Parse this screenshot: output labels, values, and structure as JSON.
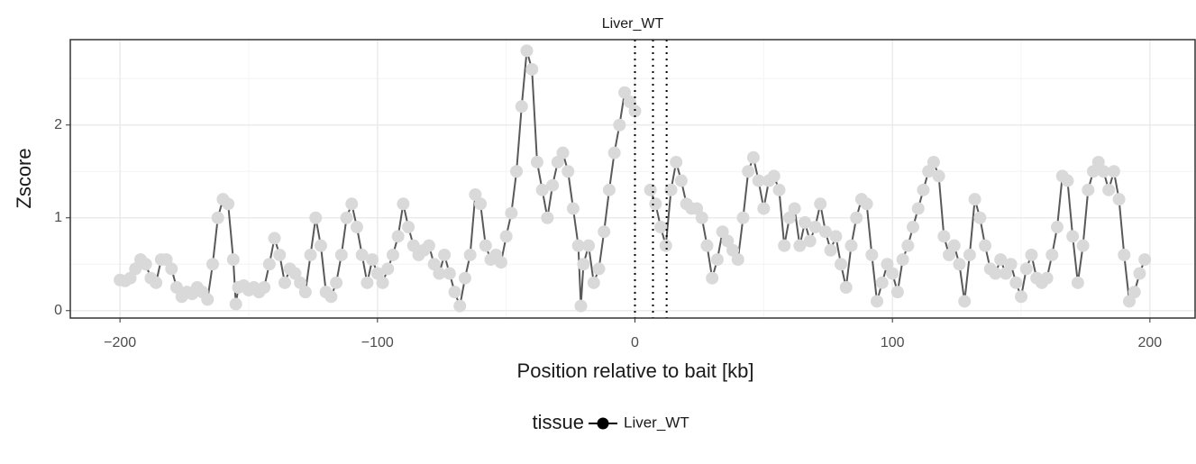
{
  "chart_data": {
    "type": "line",
    "panel_title": "Liver_WT",
    "x_label": "Position relative to bait [kb]",
    "y_label": "Zscore",
    "x": [
      -200,
      -198,
      -196,
      -194,
      -192,
      -190,
      -188,
      -186,
      -184,
      -182,
      -180,
      -178,
      -176,
      -174,
      -172,
      -170,
      -168,
      -166,
      -164,
      -162,
      -160,
      -158,
      -156,
      -155,
      -154,
      -152,
      -150,
      -148,
      -146,
      -144,
      -142,
      -140,
      -138,
      -136,
      -134,
      -132,
      -130,
      -128,
      -126,
      -124,
      -122,
      -120,
      -118,
      -116,
      -114,
      -112,
      -110,
      -108,
      -106,
      -104,
      -102,
      -100,
      -98,
      -96,
      -94,
      -92,
      -90,
      -88,
      -86,
      -84,
      -82,
      -80,
      -78,
      -76,
      -74,
      -72,
      -70,
      -68,
      -66,
      -64,
      -62,
      -60,
      -58,
      -56,
      -54,
      -52,
      -50,
      -48,
      -46,
      -44,
      -42,
      -40,
      -38,
      -36,
      -34,
      -32,
      -30,
      -28,
      -26,
      -24,
      -22,
      -21,
      -20,
      -18,
      -16,
      -14,
      -12,
      -10,
      -8,
      -6,
      -4,
      -2,
      0,
      3,
      6,
      8,
      10,
      12,
      14,
      16,
      18,
      20,
      22,
      24,
      26,
      28,
      30,
      32,
      34,
      36,
      38,
      40,
      42,
      44,
      46,
      48,
      50,
      52,
      54,
      56,
      58,
      60,
      62,
      64,
      66,
      68,
      70,
      72,
      74,
      76,
      78,
      80,
      82,
      84,
      86,
      88,
      90,
      92,
      94,
      96,
      98,
      100,
      102,
      104,
      106,
      108,
      110,
      112,
      114,
      116,
      118,
      120,
      122,
      124,
      126,
      128,
      130,
      132,
      134,
      136,
      138,
      140,
      142,
      144,
      146,
      148,
      150,
      152,
      154,
      156,
      158,
      160,
      162,
      164,
      166,
      168,
      170,
      172,
      174,
      176,
      178,
      180,
      182,
      184,
      186,
      188,
      190,
      192,
      194,
      196,
      198
    ],
    "series": [
      {
        "name": "Liver_WT",
        "color": "#d9d9d9",
        "line_color": "#595959",
        "values": [
          0.33,
          0.32,
          0.35,
          0.45,
          0.55,
          0.5,
          0.35,
          0.3,
          0.55,
          0.55,
          0.45,
          0.25,
          0.15,
          0.2,
          0.18,
          0.25,
          0.2,
          0.12,
          0.5,
          1.0,
          1.2,
          1.15,
          0.55,
          0.07,
          0.25,
          0.27,
          0.22,
          0.25,
          0.2,
          0.25,
          0.5,
          0.78,
          0.6,
          0.3,
          0.45,
          0.4,
          0.3,
          0.2,
          0.6,
          1.0,
          0.7,
          0.2,
          0.15,
          0.3,
          0.6,
          1.0,
          1.15,
          0.9,
          0.6,
          0.3,
          0.55,
          0.4,
          0.3,
          0.45,
          0.6,
          0.8,
          1.15,
          0.9,
          0.7,
          0.6,
          0.65,
          0.7,
          0.5,
          0.4,
          0.6,
          0.4,
          0.2,
          0.05,
          0.35,
          0.6,
          1.25,
          1.15,
          0.7,
          0.55,
          0.6,
          0.52,
          0.8,
          1.05,
          1.5,
          2.2,
          2.8,
          2.6,
          1.6,
          1.3,
          1.0,
          1.35,
          1.6,
          1.7,
          1.5,
          1.1,
          0.7,
          0.05,
          0.5,
          0.7,
          0.3,
          0.45,
          0.85,
          1.3,
          1.7,
          2.0,
          2.35,
          2.25,
          2.15,
          null,
          1.3,
          1.15,
          0.9,
          0.7,
          1.3,
          1.6,
          1.4,
          1.15,
          1.1,
          1.1,
          1.0,
          0.7,
          0.35,
          0.55,
          0.85,
          0.75,
          0.65,
          0.55,
          1.0,
          1.5,
          1.65,
          1.4,
          1.1,
          1.4,
          1.45,
          1.3,
          0.7,
          1.0,
          1.1,
          0.7,
          0.95,
          0.75,
          0.9,
          1.15,
          0.85,
          0.65,
          0.8,
          0.5,
          0.25,
          0.7,
          1.0,
          1.2,
          1.15,
          0.6,
          0.1,
          0.3,
          0.5,
          0.4,
          0.2,
          0.55,
          0.7,
          0.9,
          1.1,
          1.3,
          1.5,
          1.6,
          1.45,
          0.8,
          0.6,
          0.7,
          0.5,
          0.1,
          0.6,
          1.2,
          1.0,
          0.7,
          0.45,
          0.4,
          0.55,
          0.4,
          0.5,
          0.3,
          0.15,
          0.45,
          0.6,
          0.35,
          0.3,
          0.35,
          0.6,
          0.9,
          1.45,
          1.4,
          0.8,
          0.3,
          0.7,
          1.3,
          1.5,
          1.6,
          1.5,
          1.3,
          1.5,
          1.2,
          0.6,
          0.1,
          0.2,
          0.4,
          0.55
        ]
      }
    ],
    "xlim": [
      -219.3,
      217.9
    ],
    "ylim": [
      -0.08,
      2.92
    ],
    "xticks": [
      {
        "value": -200,
        "label": "−200"
      },
      {
        "value": -100,
        "label": "−100"
      },
      0,
      100,
      200
    ],
    "yticks": [
      0,
      1,
      2
    ],
    "x_minor_ticks": [
      -150,
      -50,
      50,
      150
    ],
    "y_minor_ticks": [
      0.5,
      1.5,
      2.5
    ],
    "vlines": [
      0,
      7,
      12.3
    ],
    "grid": true,
    "legend": {
      "title": "tissue",
      "position": "bottom",
      "key_color": "#000000"
    }
  }
}
